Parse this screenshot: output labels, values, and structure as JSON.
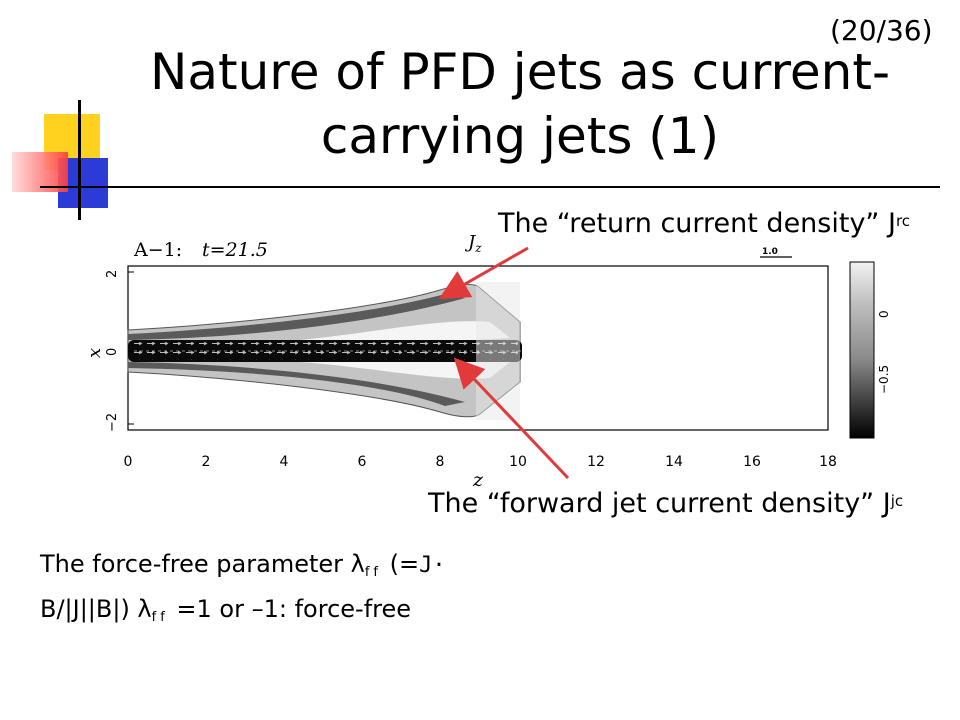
{
  "slide": {
    "number": "(20/36)",
    "title_line1": "Nature of PFD jets as current-",
    "title_line2": "carrying jets (1)"
  },
  "annotations": {
    "return_current": {
      "text": "The “return current density” J",
      "sup": "rc"
    },
    "forward_current": {
      "text": "The “forward jet current density” J",
      "sup": "jc"
    }
  },
  "body": {
    "line1_a": "The force-free parameter λ",
    "line1_sub": "ff",
    "line1_b": " (=",
    "line1_mono": "J·",
    "line2_a": "B/|J||B|) λ",
    "line2_sub": "ff",
    "line2_b": " =1 or –1: force-free"
  },
  "figure": {
    "run_label": "A−1:",
    "time_label": "t=21.5",
    "colorbar_title": "J_z",
    "vector_scale": "1.0",
    "xlabel": "z",
    "ylabel": "x",
    "x_ticks": [
      "0",
      "2",
      "4",
      "6",
      "8",
      "10",
      "12",
      "14",
      "16",
      "18"
    ],
    "y_ticks": [
      "2",
      "0",
      "−2"
    ],
    "colorbar_ticks": [
      "0",
      "−0.5"
    ]
  },
  "colors": {
    "arrow": "#e23a3a",
    "logo_yellow": "#ffd21f",
    "logo_blue": "#2b3bd8",
    "logo_red": "#ff3b3b"
  }
}
